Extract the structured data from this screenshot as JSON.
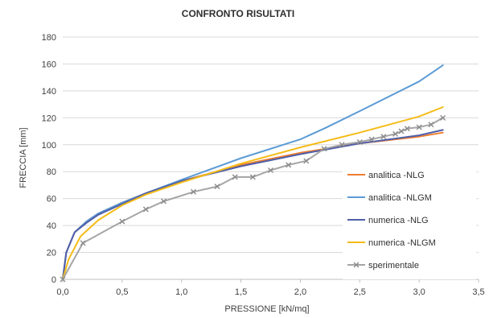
{
  "chart_data": {
    "type": "line",
    "title": "CONFRONTO RISULTATI",
    "xlabel": "PRESSIONE [kN/mq]",
    "ylabel": "FRECCIA [mm]",
    "xlim": [
      0,
      3.5
    ],
    "ylim": [
      0,
      180
    ],
    "x_ticks": [
      "0,0",
      "0,5",
      "1,0",
      "1,5",
      "2,0",
      "2,5",
      "3,0",
      "3,5"
    ],
    "y_ticks": [
      "0",
      "20",
      "40",
      "60",
      "80",
      "100",
      "120",
      "140",
      "160",
      "180"
    ],
    "grid": "horizontal",
    "legend_position": "right",
    "series": [
      {
        "name": "analitica -NLG",
        "color": "#ED7D31",
        "marker": "none",
        "points": [
          [
            0,
            0
          ],
          [
            0.03,
            20
          ],
          [
            0.1,
            35
          ],
          [
            0.2,
            43
          ],
          [
            0.3,
            49
          ],
          [
            0.5,
            57
          ],
          [
            0.7,
            64
          ],
          [
            1.0,
            73
          ],
          [
            1.5,
            85
          ],
          [
            2.0,
            94
          ],
          [
            2.5,
            101
          ],
          [
            3.0,
            106
          ],
          [
            3.2,
            109
          ]
        ]
      },
      {
        "name": "analitica -NLGM",
        "color": "#5B9BD5",
        "marker": "none",
        "points": [
          [
            0,
            0
          ],
          [
            0.03,
            20
          ],
          [
            0.1,
            35
          ],
          [
            0.2,
            43
          ],
          [
            0.3,
            49
          ],
          [
            0.5,
            57
          ],
          [
            0.7,
            64
          ],
          [
            1.0,
            74
          ],
          [
            1.5,
            90
          ],
          [
            2.0,
            104
          ],
          [
            2.2,
            112
          ],
          [
            2.5,
            125
          ],
          [
            3.0,
            147
          ],
          [
            3.2,
            159
          ]
        ]
      },
      {
        "name": "numerica -NLG",
        "color": "#4F5FA8",
        "marker": "none",
        "points": [
          [
            0,
            0
          ],
          [
            0.03,
            20
          ],
          [
            0.1,
            35
          ],
          [
            0.2,
            42
          ],
          [
            0.3,
            48
          ],
          [
            0.5,
            56
          ],
          [
            0.7,
            64
          ],
          [
            1.0,
            73
          ],
          [
            1.5,
            84
          ],
          [
            2.0,
            93
          ],
          [
            2.5,
            101
          ],
          [
            3.0,
            107
          ],
          [
            3.2,
            111
          ]
        ]
      },
      {
        "name": "numerica -NLGM",
        "color": "#F5BC18",
        "marker": "none",
        "points": [
          [
            0,
            0
          ],
          [
            0.05,
            15
          ],
          [
            0.15,
            32
          ],
          [
            0.3,
            44
          ],
          [
            0.5,
            55
          ],
          [
            0.7,
            63
          ],
          [
            1.0,
            72
          ],
          [
            1.5,
            86
          ],
          [
            2.0,
            98
          ],
          [
            2.5,
            109
          ],
          [
            3.0,
            121
          ],
          [
            3.2,
            128
          ]
        ]
      },
      {
        "name": "sperimentale",
        "color": "#A5A5A5",
        "marker": "x",
        "points": [
          [
            0,
            0
          ],
          [
            0.17,
            27
          ],
          [
            0.5,
            43
          ],
          [
            0.7,
            52
          ],
          [
            0.85,
            58
          ],
          [
            1.1,
            65
          ],
          [
            1.3,
            69
          ],
          [
            1.45,
            76
          ],
          [
            1.6,
            76
          ],
          [
            1.75,
            81
          ],
          [
            1.9,
            85
          ],
          [
            2.05,
            88
          ],
          [
            2.2,
            97
          ],
          [
            2.35,
            100
          ],
          [
            2.5,
            102
          ],
          [
            2.6,
            104
          ],
          [
            2.7,
            106
          ],
          [
            2.8,
            108
          ],
          [
            2.85,
            110
          ],
          [
            2.9,
            112
          ],
          [
            3.0,
            113
          ],
          [
            3.1,
            115
          ],
          [
            3.2,
            120
          ]
        ]
      }
    ]
  }
}
